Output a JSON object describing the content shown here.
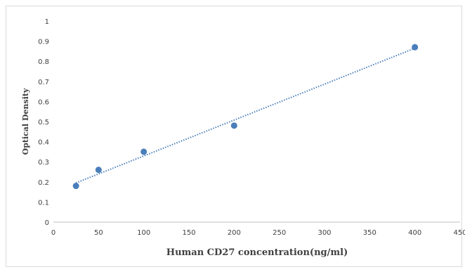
{
  "chart_data": {
    "type": "scatter",
    "title": "",
    "xlabel": "Human CD27 concentration(ng/ml)",
    "ylabel": "Optical Density",
    "xlim": [
      0,
      450
    ],
    "ylim": [
      0,
      1
    ],
    "x_ticks": [
      "0",
      "50",
      "100",
      "150",
      "200",
      "250",
      "300",
      "350",
      "400",
      "450"
    ],
    "y_ticks": [
      "0",
      "0.1",
      "0.2",
      "0.3",
      "0.4",
      "0.5",
      "0.6",
      "0.7",
      "0.8",
      "0.9",
      "1"
    ],
    "grid": false,
    "legend": "none",
    "series": [
      {
        "x": [
          25,
          50,
          100,
          200,
          400
        ],
        "y": [
          0.18,
          0.26,
          0.35,
          0.48,
          0.87
        ],
        "color": "#4a7ebb"
      }
    ],
    "trendline": {
      "style": "dotted",
      "color": "#4a7ebb",
      "x": [
        25,
        400
      ],
      "y": [
        0.195,
        0.865
      ]
    }
  }
}
